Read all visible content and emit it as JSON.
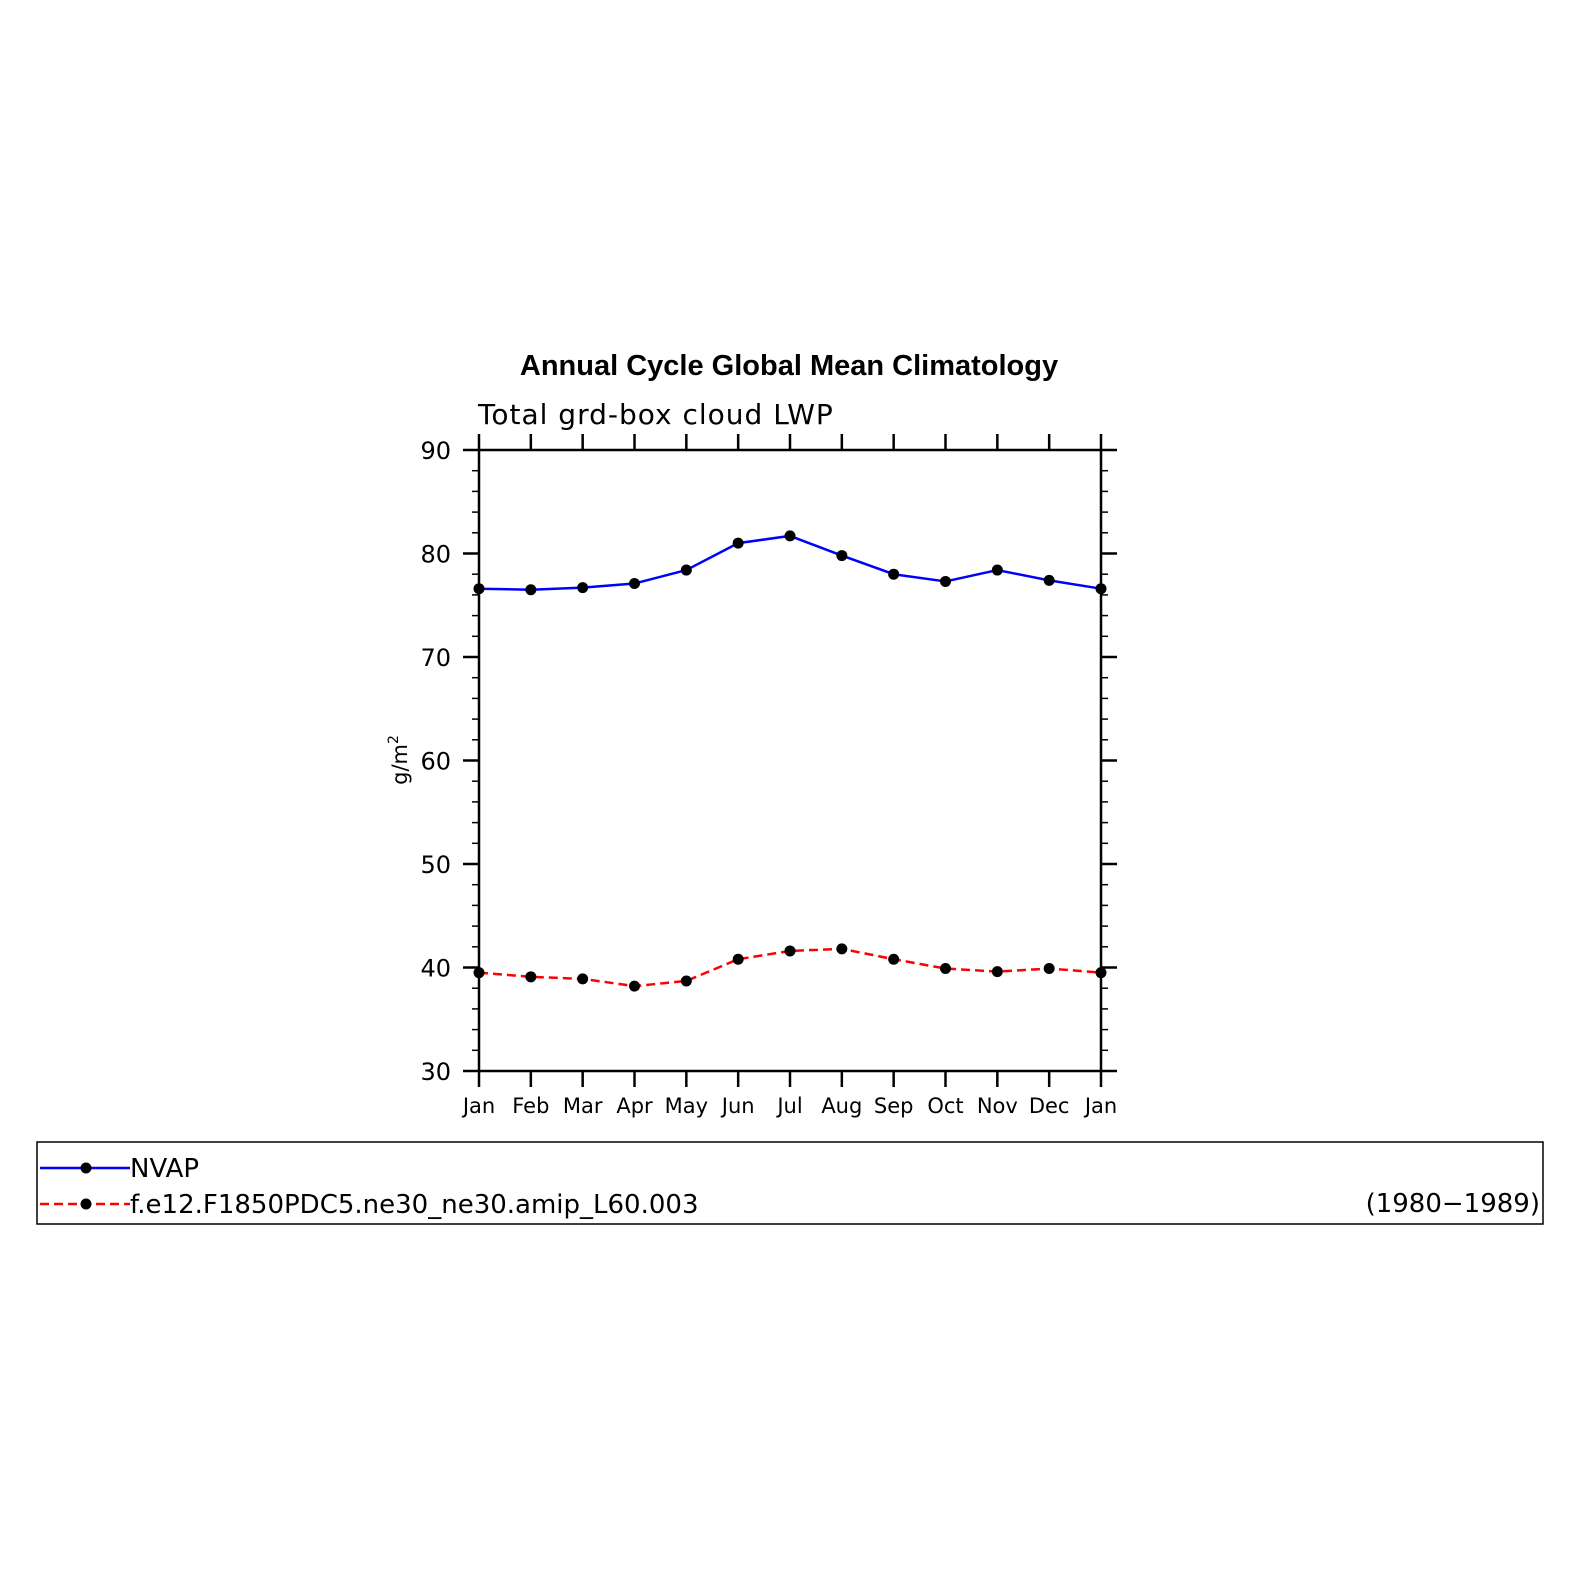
{
  "chart_data": {
    "type": "line",
    "title": "Annual Cycle Global Mean Climatology",
    "subtitle": "Total grd-box cloud LWP",
    "ylabel_base": "g/m",
    "ylabel_sup": "2",
    "categories": [
      "Jan",
      "Feb",
      "Mar",
      "Apr",
      "May",
      "Jun",
      "Jul",
      "Aug",
      "Sep",
      "Oct",
      "Nov",
      "Dec",
      "Jan"
    ],
    "ylim": [
      30,
      90
    ],
    "yticks": [
      "30",
      "40",
      "50",
      "60",
      "70",
      "80",
      "90"
    ],
    "series": [
      {
        "name": "NVAP",
        "color": "#0000ff",
        "dash": "solid",
        "values": [
          76.6,
          76.5,
          76.7,
          77.1,
          78.4,
          81.0,
          81.7,
          79.8,
          78.0,
          77.3,
          78.4,
          77.4,
          76.6
        ]
      },
      {
        "name": "f.e12.F1850PDC5.ne30_ne30.amip_L60.003",
        "color": "#ff0000",
        "dash": "dashed",
        "values": [
          39.5,
          39.1,
          38.9,
          38.2,
          38.7,
          40.8,
          41.6,
          41.8,
          40.8,
          39.9,
          39.6,
          39.9,
          39.5
        ]
      }
    ],
    "legend_note": "(1980−1989)",
    "legend_placement": "bottom",
    "marker_color": "#000000",
    "grid": false
  }
}
